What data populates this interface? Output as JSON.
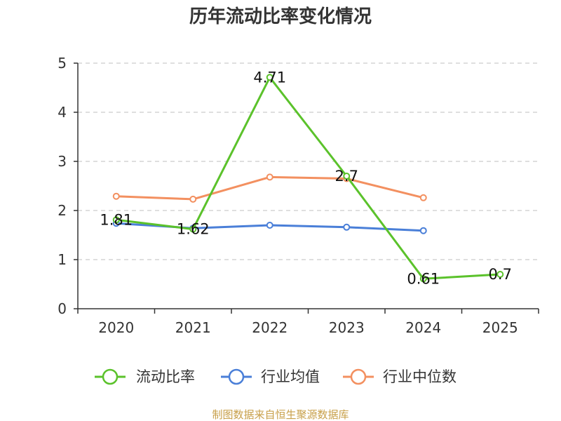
{
  "chart_data": {
    "type": "line",
    "title": "历年流动比率变化情况",
    "categories": [
      "2020",
      "2021",
      "2022",
      "2023",
      "2024",
      "2025"
    ],
    "ylim": [
      0,
      5
    ],
    "yticks": [
      "0",
      "1",
      "2",
      "3",
      "4",
      "5"
    ],
    "grid": true,
    "legend_position": "bottom",
    "series": [
      {
        "name": "流动比率",
        "color": "#5bc22b",
        "values": [
          1.81,
          1.62,
          4.71,
          2.7,
          0.61,
          0.7
        ],
        "labels": [
          "1.81",
          "1.62",
          "4.71",
          "2.7",
          "0.61",
          "0.7"
        ]
      },
      {
        "name": "行业均值",
        "color": "#4a7fd8",
        "values": [
          1.74,
          1.64,
          1.7,
          1.66,
          1.59,
          null
        ]
      },
      {
        "name": "行业中位数",
        "color": "#f39060",
        "values": [
          2.29,
          2.23,
          2.68,
          2.65,
          2.26,
          null
        ]
      }
    ]
  },
  "source": "制图数据来自恒生聚源数据库"
}
